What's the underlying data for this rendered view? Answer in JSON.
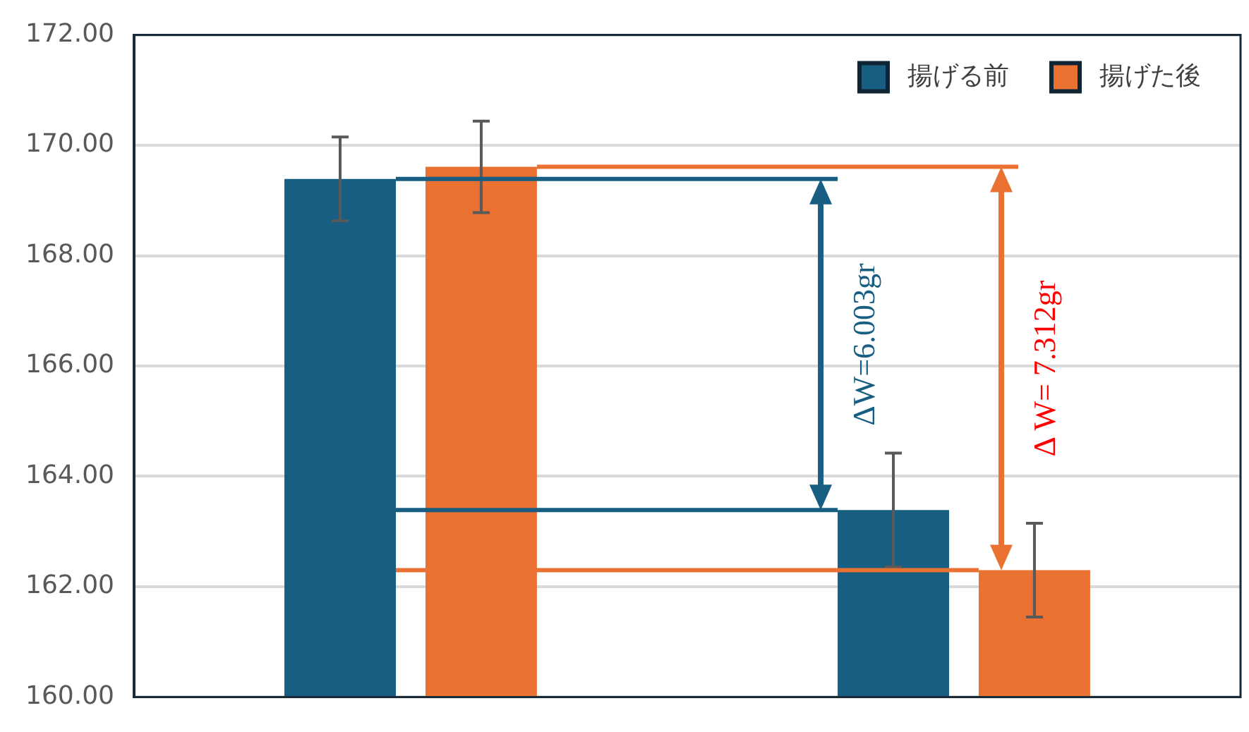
{
  "chart_data": {
    "type": "bar",
    "categories": [
      null,
      null
    ],
    "series": [
      {
        "name": "揚げる前",
        "color": "#175e82",
        "values": [
          169.39,
          163.39
        ],
        "errors": [
          0.76,
          1.03
        ]
      },
      {
        "name": "揚げた後",
        "color": "#e97132",
        "values": [
          169.61,
          162.3
        ],
        "errors": [
          0.83,
          0.85
        ]
      }
    ],
    "ylim": [
      160,
      172
    ],
    "yticks": [
      {
        "value": 160,
        "label": "160.00"
      },
      {
        "value": 162,
        "label": "162.00"
      },
      {
        "value": 164,
        "label": "164.00"
      },
      {
        "value": 166,
        "label": "166.00"
      },
      {
        "value": 168,
        "label": "168.00"
      },
      {
        "value": 170,
        "label": "170.00"
      },
      {
        "value": 172,
        "label": "172.00"
      }
    ],
    "annotations": [
      "ΔW=6.003gr",
      "Δ W= 7.312gr"
    ],
    "ref_lines": [
      {
        "axis": "y",
        "value": 169.39,
        "color": "#175e82"
      },
      {
        "axis": "y",
        "value": 163.39,
        "color": "#175e82"
      },
      {
        "axis": "y",
        "value": 169.61,
        "color": "#e97132"
      },
      {
        "axis": "y",
        "value": 162.3,
        "color": "#e97132"
      }
    ],
    "grid": "y",
    "legend": "top right"
  }
}
